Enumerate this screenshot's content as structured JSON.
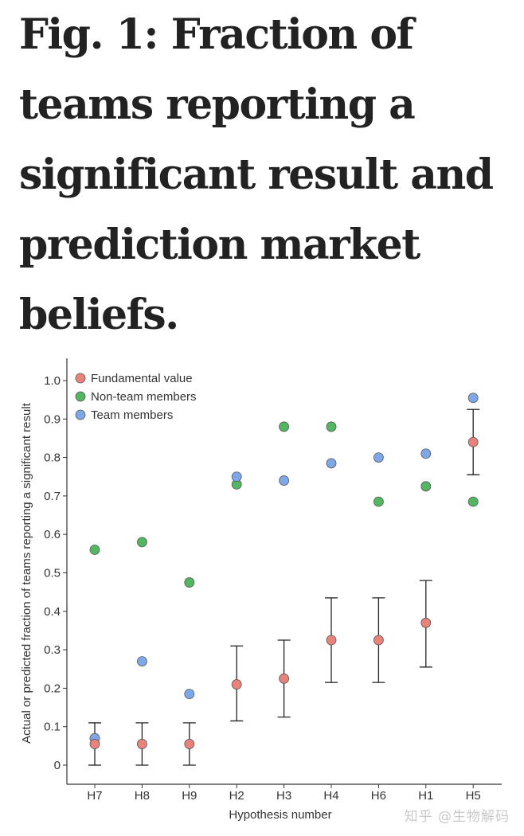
{
  "title": "Fig. 1: Fraction of teams reporting a significant result and prediction market beliefs.",
  "watermark": "知乎 @生物解码",
  "chart_data": {
    "type": "scatter",
    "title": "",
    "xlabel": "Hypothesis number",
    "ylabel": "Actual or predicted fraction of teams reporting a significant result",
    "categories": [
      "H7",
      "H8",
      "H9",
      "H2",
      "H3",
      "H4",
      "H6",
      "H1",
      "H5"
    ],
    "ylim": [
      0,
      1.0
    ],
    "yticks": [
      "0",
      "0.1",
      "0.2",
      "0.3",
      "0.4",
      "0.5",
      "0.6",
      "0.7",
      "0.8",
      "0.9",
      "1.0"
    ],
    "grid": false,
    "legend_position": "top-left",
    "series": [
      {
        "name": "Fundamental value",
        "color": "#e8837b",
        "values": [
          0.055,
          0.055,
          0.055,
          0.21,
          0.225,
          0.325,
          0.325,
          0.37,
          0.84
        ],
        "error_low": [
          0.0,
          0.0,
          0.0,
          0.115,
          0.125,
          0.215,
          0.215,
          0.255,
          0.755
        ],
        "error_high": [
          0.11,
          0.11,
          0.11,
          0.31,
          0.325,
          0.435,
          0.435,
          0.48,
          0.925
        ]
      },
      {
        "name": "Non-team members",
        "color": "#52b760",
        "values": [
          0.56,
          0.58,
          0.475,
          0.73,
          0.88,
          0.88,
          0.685,
          0.725,
          0.685
        ]
      },
      {
        "name": "Team members",
        "color": "#7ea7e8",
        "values": [
          0.07,
          0.27,
          0.185,
          0.75,
          0.74,
          0.785,
          0.8,
          0.81,
          0.955
        ]
      }
    ]
  }
}
